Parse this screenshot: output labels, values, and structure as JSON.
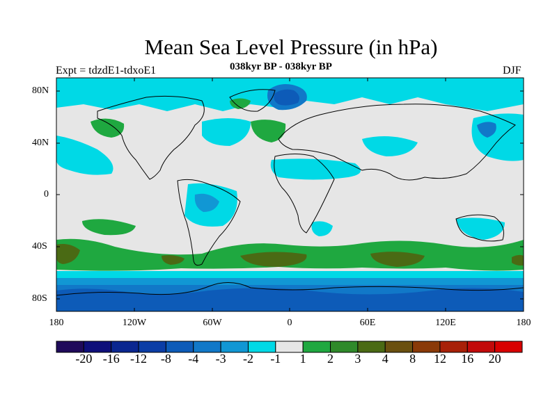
{
  "title": "Mean Sea Level Pressure (in hPa)",
  "subtitle": "038kyr BP - 038kyr BP",
  "experiment": "Expt = tdzdE1-tdxoE1",
  "season": "DJF",
  "lat_labels": [
    "80N",
    "40N",
    "0",
    "40S",
    "80S"
  ],
  "lon_labels": [
    "180",
    "120W",
    "60W",
    "0",
    "60E",
    "120E",
    "180"
  ],
  "colorbar": {
    "colors": [
      "#1f0a5a",
      "#0e0f7a",
      "#0a2690",
      "#0b3da6",
      "#0d5bb8",
      "#1178c8",
      "#1197d4",
      "#00d9e6",
      "#e6e6e6",
      "#1fa840",
      "#2f8a2a",
      "#4a6a14",
      "#6a5010",
      "#8a3a08",
      "#a82008",
      "#c20a0a",
      "#d80000"
    ],
    "labels": [
      "-20",
      "-16",
      "-12",
      "-8",
      "-4",
      "-3",
      "-2",
      "-1",
      "1",
      "2",
      "3",
      "4",
      "8",
      "12",
      "16",
      "20"
    ]
  },
  "colors": {
    "background": "#e6e6e6",
    "neg1": "#00d9e6",
    "neg2": "#1197d4",
    "neg3": "#1178c8",
    "neg4": "#0d5bb8",
    "pos1": "#1fa840",
    "pos2": "#4a6a14"
  }
}
